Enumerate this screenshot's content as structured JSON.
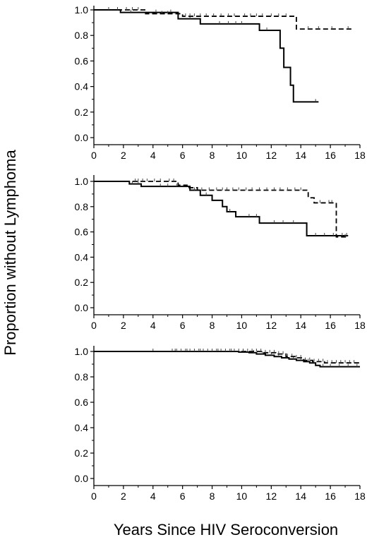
{
  "ylabel": "Proportion without Lymphoma",
  "xlabel": "Years Since HIV Seroconversion",
  "chart_data": [
    {
      "type": "line",
      "xlim": [
        0,
        18
      ],
      "ylim": [
        0,
        1
      ],
      "x_ticks": [
        "0",
        "2",
        "4",
        "6",
        "8",
        "10",
        "12",
        "14",
        "16",
        "18"
      ],
      "y_ticks": [
        "0.0",
        "0.2",
        "0.4",
        "0.6",
        "0.8",
        "1.0"
      ],
      "series": [
        {
          "style": "solid",
          "steps": [
            [
              0,
              1.0
            ],
            [
              1.8,
              0.98
            ],
            [
              5.7,
              0.93
            ],
            [
              7.2,
              0.89
            ],
            [
              11.2,
              0.84
            ],
            [
              12.6,
              0.7
            ],
            [
              12.85,
              0.55
            ],
            [
              13.3,
              0.41
            ],
            [
              13.5,
              0.28
            ],
            [
              15.2,
              0.28
            ]
          ],
          "censored": [
            1.0,
            2.5,
            4.2,
            5.2,
            6.5,
            8.5,
            9.1,
            9.6,
            10.0,
            11.7,
            15.0
          ]
        },
        {
          "style": "dashed",
          "steps": [
            [
              0,
              1.0
            ],
            [
              3.5,
              0.97
            ],
            [
              6.0,
              0.95
            ],
            [
              13.7,
              0.85
            ],
            [
              17.5,
              0.85
            ]
          ],
          "censored": [
            1.6,
            2.2,
            2.6,
            3.0,
            4.6,
            5.0,
            6.2,
            6.5,
            6.8,
            7.2,
            7.6,
            8.1,
            8.6,
            9.1,
            9.5,
            10.2,
            10.6,
            11.0,
            11.4,
            12.0,
            12.5,
            13.0,
            14.5,
            15.2,
            16.1,
            17.2
          ]
        }
      ]
    },
    {
      "type": "line",
      "xlim": [
        0,
        18
      ],
      "ylim": [
        0,
        1
      ],
      "x_ticks": [
        "0",
        "2",
        "4",
        "6",
        "8",
        "10",
        "12",
        "14",
        "16",
        "18"
      ],
      "y_ticks": [
        "0.0",
        "0.2",
        "0.4",
        "0.6",
        "0.8",
        "1.0"
      ],
      "series": [
        {
          "style": "solid",
          "steps": [
            [
              0,
              1.0
            ],
            [
              2.4,
              0.98
            ],
            [
              3.2,
              0.96
            ],
            [
              6.5,
              0.93
            ],
            [
              7.2,
              0.89
            ],
            [
              8.0,
              0.85
            ],
            [
              8.7,
              0.8
            ],
            [
              9.0,
              0.76
            ],
            [
              9.6,
              0.72
            ],
            [
              11.2,
              0.67
            ],
            [
              14.4,
              0.57
            ],
            [
              17.2,
              0.57
            ]
          ],
          "censored": [
            2.6,
            3.0,
            4.5,
            5.0,
            5.6,
            6.8,
            7.6,
            9.2,
            10.5,
            11.0,
            12.2,
            12.8,
            13.5,
            15.0,
            15.6,
            16.2,
            16.8,
            17.1
          ]
        },
        {
          "style": "dashed",
          "steps": [
            [
              0,
              1.0
            ],
            [
              5.7,
              0.97
            ],
            [
              6.3,
              0.95
            ],
            [
              7.0,
              0.93
            ],
            [
              14.5,
              0.87
            ],
            [
              14.9,
              0.83
            ],
            [
              16.4,
              0.56
            ],
            [
              17.2,
              0.56
            ]
          ],
          "censored": [
            2.8,
            3.0,
            3.3,
            3.6,
            4.1,
            4.5,
            5.1,
            5.4,
            7.3,
            7.8,
            8.3,
            8.7,
            9.0,
            9.4,
            9.8,
            10.3,
            10.7,
            11.2,
            11.7,
            12.2,
            12.6,
            13.1,
            13.6,
            14.0,
            15.3,
            15.9,
            16.1,
            17.0
          ]
        }
      ]
    },
    {
      "type": "line",
      "xlim": [
        0,
        18
      ],
      "ylim": [
        0,
        1
      ],
      "x_ticks": [
        "0",
        "2",
        "4",
        "6",
        "8",
        "10",
        "12",
        "14",
        "16",
        "18"
      ],
      "y_ticks": [
        "0.0",
        "0.2",
        "0.4",
        "0.6",
        "0.8",
        "1.0"
      ],
      "series": [
        {
          "style": "solid",
          "steps": [
            [
              0,
              1.0
            ],
            [
              9.8,
              0.995
            ],
            [
              10.5,
              0.99
            ],
            [
              11.0,
              0.98
            ],
            [
              11.6,
              0.97
            ],
            [
              12.2,
              0.96
            ],
            [
              12.7,
              0.95
            ],
            [
              13.2,
              0.94
            ],
            [
              13.7,
              0.93
            ],
            [
              14.2,
              0.92
            ],
            [
              14.6,
              0.91
            ],
            [
              15.0,
              0.89
            ],
            [
              15.3,
              0.88
            ],
            [
              18.0,
              0.88
            ]
          ],
          "censored": [
            4.0,
            5.5,
            6.3,
            7.2,
            8.4,
            9.3,
            10.1,
            10.8,
            11.4,
            12.0,
            12.5,
            13.0,
            13.5,
            14.0,
            14.5,
            15.5,
            16.0,
            16.6,
            17.2,
            17.8
          ]
        },
        {
          "style": "dashed",
          "steps": [
            [
              0,
              1.0
            ],
            [
              11.5,
              0.99
            ],
            [
              12.3,
              0.98
            ],
            [
              13.0,
              0.96
            ],
            [
              13.6,
              0.95
            ],
            [
              14.2,
              0.93
            ],
            [
              14.8,
              0.92
            ],
            [
              15.6,
              0.91
            ],
            [
              18.0,
              0.91
            ]
          ],
          "censored": [
            5.3,
            5.6,
            5.9,
            6.2,
            6.5,
            6.8,
            7.1,
            7.4,
            7.7,
            8.0,
            8.3,
            8.6,
            8.9,
            9.2,
            9.5,
            9.8,
            10.1,
            10.4,
            10.7,
            11.0,
            11.3,
            11.6,
            11.9,
            12.2,
            12.5,
            12.8,
            13.1,
            13.4,
            13.7,
            14.0,
            14.3,
            14.6,
            14.9,
            15.2,
            15.5,
            15.8,
            16.1,
            16.4,
            16.7,
            17.0,
            17.3,
            17.6
          ]
        }
      ]
    }
  ]
}
